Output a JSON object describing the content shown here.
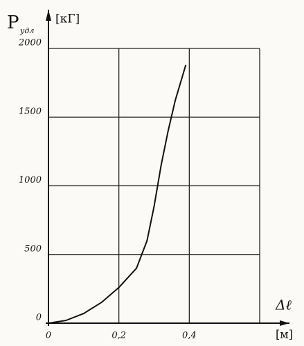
{
  "chart_data": {
    "type": "line",
    "ylabel": "P",
    "ylabel_sub": "удл",
    "yunit": "[кГ]",
    "xlabel": "Δℓ",
    "xunit": "[м]",
    "x": [
      0,
      0.05,
      0.1,
      0.15,
      0.2,
      0.25,
      0.28,
      0.3,
      0.32,
      0.34,
      0.36,
      0.39
    ],
    "series": [
      {
        "color": "#111111",
        "values": [
          0,
          20,
          70,
          150,
          260,
          400,
          600,
          850,
          1150,
          1400,
          1620,
          1880
        ]
      }
    ],
    "xlim": [
      0,
      0.6
    ],
    "ylim": [
      0,
      2000
    ],
    "xticks": [
      {
        "value": 0,
        "label": "0"
      },
      {
        "value": 0.2,
        "label": "0,2"
      },
      {
        "value": 0.4,
        "label": "0,4"
      }
    ],
    "yticks": [
      0,
      500,
      1000,
      1500,
      2000
    ],
    "grid": true
  }
}
